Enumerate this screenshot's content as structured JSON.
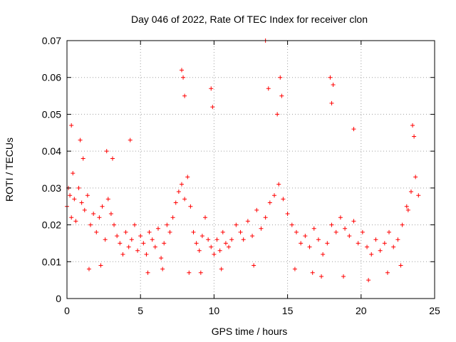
{
  "chart_data": {
    "type": "scatter",
    "title": "Day 046 of 2022, Rate Of TEC Index for receiver clon",
    "xlabel": "GPS time / hours",
    "ylabel": "ROTI / TECUs",
    "xlim": [
      0,
      25
    ],
    "ylim": [
      0,
      0.07
    ],
    "x_ticks": [
      "0",
      "5",
      "10",
      "15",
      "20",
      "25"
    ],
    "y_ticks": [
      "0",
      "0.01",
      "0.02",
      "0.03",
      "0.04",
      "0.05",
      "0.06",
      "0.07"
    ],
    "grid": true,
    "marker": "+",
    "color": "#ff0000",
    "series": [
      {
        "x": [
          0.0,
          0.1,
          0.2,
          0.3,
          0.4,
          0.5,
          0.6,
          0.8,
          1.0,
          1.2,
          1.4,
          1.6,
          1.8,
          2.0,
          2.2,
          2.4,
          2.6,
          2.8,
          3.0,
          3.2,
          3.4,
          3.6,
          3.8,
          4.0,
          4.2,
          4.4,
          4.6,
          4.8,
          5.0,
          5.2,
          5.4,
          5.6,
          5.8,
          6.0,
          6.2,
          6.4,
          6.6,
          6.8,
          7.0,
          7.2,
          7.4,
          7.6,
          7.8,
          8.0,
          8.2,
          8.4,
          8.6,
          8.8,
          9.0,
          9.2,
          9.4,
          9.6,
          9.8,
          10.0,
          10.2,
          10.4,
          10.6,
          10.8,
          11.0,
          11.2,
          11.5,
          11.8,
          12.0,
          12.3,
          12.6,
          12.9,
          13.2,
          13.5,
          13.8,
          14.1,
          14.4,
          14.7,
          15.0,
          15.3,
          15.6,
          15.9,
          16.2,
          16.5,
          16.8,
          17.1,
          17.4,
          17.7,
          18.0,
          18.3,
          18.6,
          18.9,
          19.2,
          19.5,
          19.8,
          20.1,
          20.4,
          20.7,
          21.0,
          21.3,
          21.6,
          21.9,
          22.2,
          22.5,
          22.8,
          23.1,
          23.4,
          23.7,
          23.9,
          0.3,
          0.9,
          1.1,
          2.7,
          3.1,
          4.3,
          7.8,
          7.9,
          8.0,
          9.8,
          9.9,
          13.5,
          13.7,
          14.3,
          14.5,
          14.6,
          17.9,
          18.0,
          18.1,
          19.5,
          23.5,
          23.6,
          1.5,
          2.3,
          5.5,
          6.5,
          8.3,
          9.1,
          10.5,
          12.7,
          15.5,
          16.7,
          17.3,
          18.8,
          20.5,
          21.8,
          22.7,
          23.2
        ],
        "y": [
          0.025,
          0.03,
          0.028,
          0.022,
          0.034,
          0.027,
          0.021,
          0.03,
          0.026,
          0.024,
          0.028,
          0.02,
          0.023,
          0.018,
          0.022,
          0.025,
          0.016,
          0.027,
          0.023,
          0.02,
          0.017,
          0.015,
          0.012,
          0.018,
          0.014,
          0.016,
          0.02,
          0.013,
          0.017,
          0.015,
          0.012,
          0.018,
          0.016,
          0.014,
          0.019,
          0.011,
          0.015,
          0.02,
          0.018,
          0.022,
          0.026,
          0.029,
          0.031,
          0.027,
          0.033,
          0.025,
          0.018,
          0.015,
          0.013,
          0.017,
          0.022,
          0.016,
          0.014,
          0.012,
          0.016,
          0.013,
          0.018,
          0.015,
          0.014,
          0.016,
          0.02,
          0.018,
          0.016,
          0.021,
          0.017,
          0.024,
          0.019,
          0.022,
          0.026,
          0.028,
          0.031,
          0.027,
          0.023,
          0.02,
          0.018,
          0.015,
          0.017,
          0.014,
          0.019,
          0.016,
          0.012,
          0.015,
          0.02,
          0.018,
          0.022,
          0.019,
          0.017,
          0.021,
          0.015,
          0.018,
          0.014,
          0.012,
          0.016,
          0.013,
          0.015,
          0.018,
          0.014,
          0.016,
          0.02,
          0.025,
          0.029,
          0.033,
          0.028,
          0.047,
          0.043,
          0.038,
          0.04,
          0.038,
          0.043,
          0.062,
          0.06,
          0.055,
          0.057,
          0.052,
          0.07,
          0.057,
          0.05,
          0.06,
          0.055,
          0.06,
          0.053,
          0.058,
          0.046,
          0.047,
          0.044,
          0.008,
          0.009,
          0.007,
          0.008,
          0.007,
          0.007,
          0.008,
          0.009,
          0.008,
          0.007,
          0.006,
          0.006,
          0.005,
          0.007,
          0.009,
          0.024
        ]
      }
    ]
  }
}
